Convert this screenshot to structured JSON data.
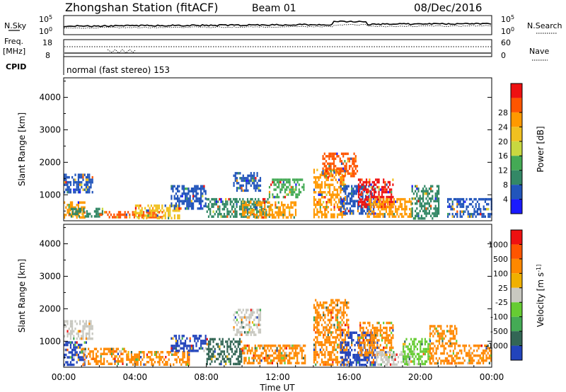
{
  "header": {
    "station": "Zhongshan Station (fitACF)",
    "beam": "Beam 01",
    "date": "08/Dec/2016"
  },
  "top_panels": {
    "nsky_label": "N.Sky",
    "nsky_left_ticks": [
      "10^5",
      "10^0"
    ],
    "nsky_right_ticks": [
      "10^5",
      "10^0"
    ],
    "nsearch_label": "N.Search",
    "freq_label_1": "Freq.",
    "freq_label_2": "[MHz]",
    "freq_left_ticks": [
      "18",
      "8"
    ],
    "nave_right_ticks": [
      "60",
      "0"
    ],
    "nave_label": "Nave",
    "cpid_label": "CPID",
    "cpid_text": "normal (fast stereo) 153"
  },
  "chart_data": [
    {
      "type": "heatmap",
      "name": "power",
      "ylabel": "Slant Range [km]",
      "ylim": [
        200,
        4600
      ],
      "yticks": [
        1000,
        2000,
        3000,
        4000
      ],
      "xlim": [
        0,
        24
      ],
      "colorbar_label": "Power [dB]",
      "colorbar_ticks": [
        4,
        8,
        12,
        16,
        20,
        24,
        28
      ],
      "colorbar_colors": [
        "#1a1aff",
        "#2255bb",
        "#338866",
        "#44aa55",
        "#c8d840",
        "#f0c020",
        "#ff9900",
        "#ff5500",
        "#ee1111"
      ],
      "echo_regions": [
        {
          "t0": 0.0,
          "t1": 1.6,
          "r0": 1100,
          "r1": 1650,
          "color": "#2255bb"
        },
        {
          "t0": 0.0,
          "t1": 1.2,
          "r0": 300,
          "r1": 800,
          "color": "#ff9900"
        },
        {
          "t0": 0.3,
          "t1": 2.2,
          "r0": 300,
          "r1": 600,
          "color": "#338866"
        },
        {
          "t0": 2.0,
          "t1": 5.5,
          "r0": 300,
          "r1": 500,
          "color": "#ff5500"
        },
        {
          "t0": 4.0,
          "t1": 6.5,
          "r0": 300,
          "r1": 700,
          "color": "#f0c020"
        },
        {
          "t0": 6.0,
          "t1": 8.0,
          "r0": 600,
          "r1": 1300,
          "color": "#2255bb"
        },
        {
          "t0": 8.0,
          "t1": 11.5,
          "r0": 300,
          "r1": 900,
          "color": "#338866"
        },
        {
          "t0": 9.5,
          "t1": 11.0,
          "r0": 1100,
          "r1": 1700,
          "color": "#2255bb"
        },
        {
          "t0": 10.0,
          "t1": 13.0,
          "r0": 300,
          "r1": 800,
          "color": "#ff9900"
        },
        {
          "t0": 11.5,
          "t1": 13.5,
          "r0": 900,
          "r1": 1500,
          "color": "#44aa55"
        },
        {
          "t0": 14.0,
          "t1": 15.8,
          "r0": 300,
          "r1": 1800,
          "color": "#ff9900"
        },
        {
          "t0": 14.5,
          "t1": 16.5,
          "r0": 1600,
          "r1": 2300,
          "color": "#ff5500"
        },
        {
          "t0": 15.5,
          "t1": 17.5,
          "r0": 400,
          "r1": 1300,
          "color": "#2255bb"
        },
        {
          "t0": 16.5,
          "t1": 18.5,
          "r0": 600,
          "r1": 1500,
          "color": "#ee1111"
        },
        {
          "t0": 17.0,
          "t1": 19.5,
          "r0": 300,
          "r1": 900,
          "color": "#ff9900"
        },
        {
          "t0": 19.5,
          "t1": 21.0,
          "r0": 300,
          "r1": 1300,
          "color": "#338866"
        },
        {
          "t0": 21.5,
          "t1": 24.0,
          "r0": 300,
          "r1": 900,
          "color": "#2255bb"
        }
      ]
    },
    {
      "type": "heatmap",
      "name": "velocity",
      "ylabel": "Slant Range [km]",
      "ylim": [
        200,
        4600
      ],
      "yticks": [
        1000,
        2000,
        3000,
        4000
      ],
      "xlim": [
        0,
        24
      ],
      "xticks": [
        "00:00",
        "04:00",
        "08:00",
        "12:00",
        "16:00",
        "20:00",
        "00:00"
      ],
      "xlabel": "Time UT",
      "colorbar_label": "Velocity [m s^-1]",
      "colorbar_ticks": [
        "1000",
        "500",
        "100",
        "25",
        "-25",
        "-100",
        "-500",
        "-1000"
      ],
      "colorbar_colors": [
        "#2244bb",
        "#336655",
        "#44aa55",
        "#66cc33",
        "#c8c8c0",
        "#f0b000",
        "#ff8800",
        "#ff5500",
        "#ee1111"
      ],
      "echo_regions": [
        {
          "t0": 0.0,
          "t1": 1.6,
          "r0": 1100,
          "r1": 1650,
          "color": "#c8c8c0"
        },
        {
          "t0": 0.0,
          "t1": 1.3,
          "r0": 300,
          "r1": 1000,
          "color": "#2244bb"
        },
        {
          "t0": 1.0,
          "t1": 3.5,
          "r0": 300,
          "r1": 800,
          "color": "#ff8800"
        },
        {
          "t0": 3.5,
          "t1": 7.0,
          "r0": 300,
          "r1": 700,
          "color": "#ff8800"
        },
        {
          "t0": 6.0,
          "t1": 8.0,
          "r0": 700,
          "r1": 1200,
          "color": "#2244bb"
        },
        {
          "t0": 8.0,
          "t1": 10.0,
          "r0": 300,
          "r1": 1100,
          "color": "#336655"
        },
        {
          "t0": 9.5,
          "t1": 11.0,
          "r0": 1200,
          "r1": 2000,
          "color": "#c8c8c0"
        },
        {
          "t0": 10.0,
          "t1": 13.5,
          "r0": 300,
          "r1": 900,
          "color": "#ff8800"
        },
        {
          "t0": 14.0,
          "t1": 16.0,
          "r0": 300,
          "r1": 2300,
          "color": "#ff8800"
        },
        {
          "t0": 15.5,
          "t1": 17.5,
          "r0": 300,
          "r1": 1300,
          "color": "#2244bb"
        },
        {
          "t0": 16.5,
          "t1": 18.5,
          "r0": 600,
          "r1": 1600,
          "color": "#ff8800"
        },
        {
          "t0": 17.5,
          "t1": 19.5,
          "r0": 300,
          "r1": 700,
          "color": "#c8c8c0"
        },
        {
          "t0": 19.0,
          "t1": 20.5,
          "r0": 300,
          "r1": 1100,
          "color": "#66cc33"
        },
        {
          "t0": 20.5,
          "t1": 22.0,
          "r0": 300,
          "r1": 1500,
          "color": "#ff8800"
        },
        {
          "t0": 22.0,
          "t1": 24.0,
          "r0": 300,
          "r1": 900,
          "color": "#ff8800"
        }
      ]
    }
  ]
}
